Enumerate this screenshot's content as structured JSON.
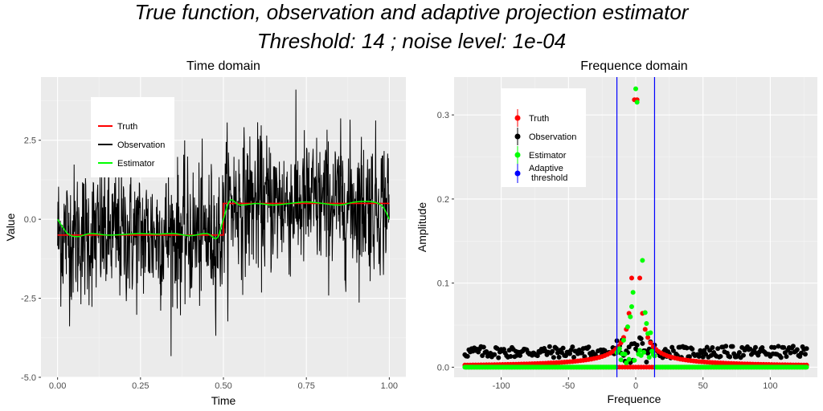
{
  "title_line1": "True function, observation and adaptive projection estimator",
  "title_line2": "Threshold: 14 ; noise level:  1e-04",
  "chart_data": [
    {
      "type": "line",
      "title": "Time domain",
      "xlabel": "Time",
      "ylabel": "Value",
      "xlim": [
        -0.05,
        1.05
      ],
      "ylim": [
        -5.0,
        4.5
      ],
      "xticks": [
        0.0,
        0.25,
        0.5,
        0.75,
        1.0
      ],
      "xtick_labels": [
        "0.00",
        "0.25",
        "0.50",
        "0.75",
        "1.00"
      ],
      "yticks": [
        -5.0,
        -2.5,
        0.0,
        2.5
      ],
      "ytick_labels": [
        "-5.0",
        "-2.5",
        "0.0",
        "2.5"
      ],
      "legend": [
        "Truth",
        "Observation",
        "Estimator"
      ],
      "legend_position": "top-left",
      "colors": {
        "Truth": "#ff0000",
        "Observation": "#000000",
        "Estimator": "#00ff00"
      },
      "series": [
        {
          "name": "Truth",
          "x": [
            0.0,
            0.5,
            0.5,
            1.0
          ],
          "y": [
            -0.5,
            -0.5,
            0.5,
            0.5
          ]
        },
        {
          "name": "Estimator",
          "x": [
            0.0,
            0.03,
            0.06,
            0.1,
            0.15,
            0.2,
            0.25,
            0.3,
            0.35,
            0.4,
            0.45,
            0.48,
            0.5,
            0.52,
            0.55,
            0.6,
            0.65,
            0.7,
            0.75,
            0.8,
            0.85,
            0.9,
            0.95,
            0.98,
            1.0
          ],
          "y": [
            0.0,
            -0.45,
            -0.55,
            -0.45,
            -0.5,
            -0.48,
            -0.45,
            -0.47,
            -0.45,
            -0.52,
            -0.45,
            -0.6,
            0.0,
            0.6,
            0.45,
            0.5,
            0.45,
            0.5,
            0.55,
            0.5,
            0.45,
            0.55,
            0.55,
            0.4,
            0.0
          ]
        },
        {
          "name": "Observation",
          "noise_sd": 1.1,
          "n_points": 1024,
          "range": [
            -4.7,
            4.2
          ]
        }
      ]
    },
    {
      "type": "scatter",
      "title": "Frequence domain",
      "xlabel": "Frequence",
      "ylabel": "Amplitude",
      "xlim": [
        -135,
        135
      ],
      "ylim": [
        -0.012,
        0.345
      ],
      "xticks": [
        -100,
        -50,
        0,
        50,
        100
      ],
      "xtick_labels": [
        "-100",
        "-50",
        "0",
        "50",
        "100"
      ],
      "yticks": [
        0.0,
        0.1,
        0.2,
        0.3
      ],
      "ytick_labels": [
        "0.0",
        "0.1",
        "0.2",
        "0.3"
      ],
      "legend": [
        "Truth",
        "Observation",
        "Estimator",
        "Adaptive\n threshold"
      ],
      "legend_position": "top-left",
      "colors": {
        "Truth": "#ff0000",
        "Observation": "#000000",
        "Estimator": "#00ff00",
        "Adaptive\n threshold": "#0000ff"
      },
      "threshold_lines": [
        -14,
        14
      ],
      "x_range": [
        -127,
        127
      ],
      "peaks": {
        "truth": [
          [
            -1,
            0.318
          ],
          [
            1,
            0.318
          ],
          [
            -3,
            0.106
          ],
          [
            3,
            0.106
          ],
          [
            -5,
            0.064
          ],
          [
            5,
            0.064
          ],
          [
            -7,
            0.045
          ],
          [
            7,
            0.045
          ]
        ],
        "estimator": [
          [
            0,
            0.331
          ],
          [
            1,
            0.315
          ],
          [
            5,
            0.127
          ],
          [
            -2,
            0.089
          ],
          [
            -3,
            0.072
          ],
          [
            7,
            0.065
          ],
          [
            -4,
            0.06
          ],
          [
            8,
            0.052
          ],
          [
            -6,
            0.048
          ],
          [
            9,
            0.04
          ],
          [
            11,
            0.041
          ],
          [
            -9,
            0.032
          ],
          [
            -12,
            0.022
          ]
        ]
      }
    }
  ]
}
